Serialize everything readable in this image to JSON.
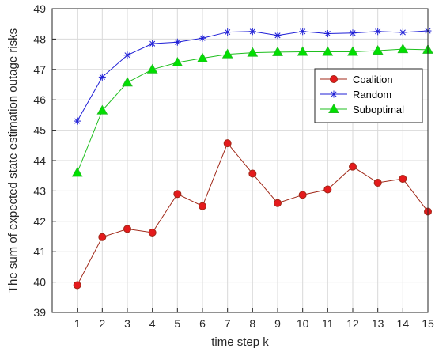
{
  "chart_data": {
    "type": "line",
    "xlabel": "time step k",
    "ylabel": "The sum of expected state estimation outage risks",
    "x": [
      1,
      2,
      3,
      4,
      5,
      6,
      7,
      8,
      9,
      10,
      11,
      12,
      13,
      14,
      15
    ],
    "xlim": [
      0,
      15
    ],
    "ylim": [
      39,
      49
    ],
    "xticks": [
      "1",
      "2",
      "3",
      "4",
      "5",
      "6",
      "7",
      "8",
      "9",
      "10",
      "11",
      "12",
      "13",
      "14",
      "15"
    ],
    "yticks": [
      "39",
      "40",
      "41",
      "42",
      "43",
      "44",
      "45",
      "46",
      "47",
      "48",
      "49"
    ],
    "grid": true,
    "legend_position": "right",
    "series": [
      {
        "name": "Coalition",
        "color": "#a02818",
        "marker_fill": "#e41a1c",
        "marker": "circle",
        "values": [
          39.9,
          41.48,
          41.75,
          41.63,
          42.9,
          42.5,
          44.57,
          43.57,
          42.6,
          42.87,
          43.05,
          43.8,
          43.27,
          43.4,
          42.32
        ]
      },
      {
        "name": "Random",
        "color": "#1f1fd6",
        "marker_fill": "#1f1fd6",
        "marker": "star",
        "values": [
          45.3,
          46.75,
          47.47,
          47.85,
          47.9,
          48.03,
          48.23,
          48.25,
          48.12,
          48.25,
          48.18,
          48.2,
          48.25,
          48.22,
          48.27
        ]
      },
      {
        "name": "Suboptimal",
        "color": "#1fbf1f",
        "marker_fill": "#00e000",
        "marker": "triangle",
        "values": [
          43.6,
          45.65,
          46.57,
          47.0,
          47.23,
          47.37,
          47.5,
          47.55,
          47.57,
          47.58,
          47.58,
          47.58,
          47.62,
          47.67,
          47.65
        ]
      }
    ]
  }
}
